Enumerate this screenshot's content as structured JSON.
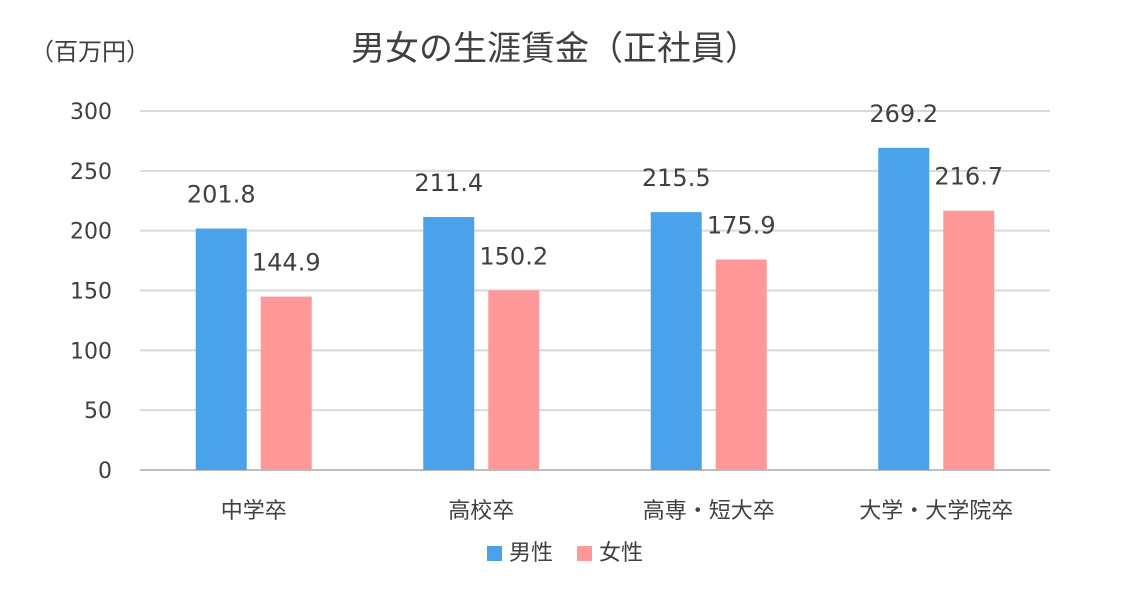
{
  "chart_data": {
    "type": "bar",
    "title": "男女の生涯賃金（正社員）",
    "ylabel": "（百万円）",
    "xlabel": "",
    "ylim": [
      0,
      300
    ],
    "yticks": [
      0,
      50,
      100,
      150,
      200,
      250,
      300
    ],
    "grid": true,
    "legend_position": "bottom",
    "categories": [
      "中学卒",
      "高校卒",
      "高専・短大卒",
      "大学・大学院卒"
    ],
    "series": [
      {
        "name": "男性",
        "color": "#4aa3ea",
        "values": [
          201.8,
          211.4,
          215.5,
          269.2
        ],
        "labels": [
          "201.8",
          "211.4",
          "215.5",
          "269.2"
        ]
      },
      {
        "name": "女性",
        "color": "#ff9999",
        "values": [
          144.9,
          150.2,
          175.9,
          216.7
        ],
        "labels": [
          "144.9",
          "150.2",
          "175.9",
          "216.7"
        ]
      }
    ]
  }
}
